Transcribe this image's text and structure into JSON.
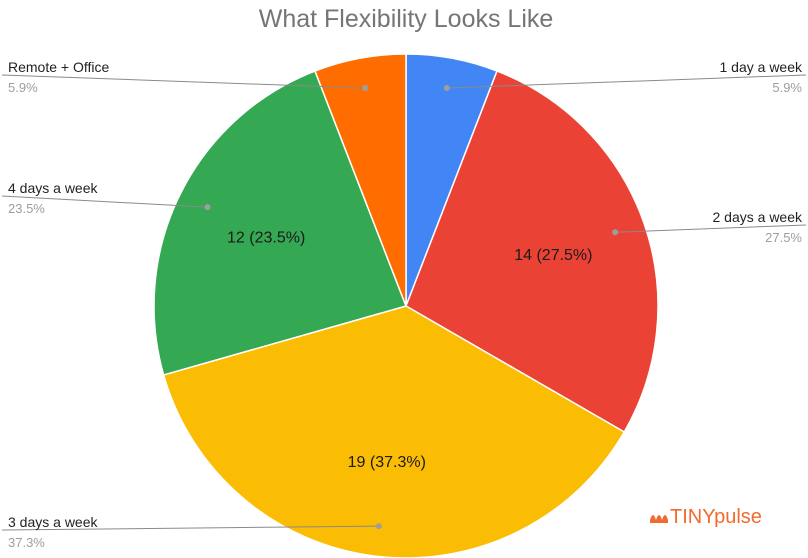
{
  "chart_data": {
    "type": "pie",
    "title": "What Flexibility Looks Like",
    "slices": [
      {
        "label": "1 day a week",
        "value": 3,
        "percent": 5.9,
        "percent_label": "5.9%",
        "color": "#4285f4",
        "inner_label": ""
      },
      {
        "label": "2 days a week",
        "value": 14,
        "percent": 27.5,
        "percent_label": "27.5%",
        "color": "#ea4335",
        "inner_label": "14 (27.5%)"
      },
      {
        "label": "3 days a week",
        "value": 19,
        "percent": 37.3,
        "percent_label": "37.3%",
        "color": "#fbbc04",
        "inner_label": "19 (37.3%)"
      },
      {
        "label": "4 days a week",
        "value": 12,
        "percent": 23.5,
        "percent_label": "23.5%",
        "color": "#34a853",
        "inner_label": "12 (23.5%)"
      },
      {
        "label": "Remote + Office",
        "value": 3,
        "percent": 5.9,
        "percent_label": "5.9%",
        "color": "#ff6d01",
        "inner_label": ""
      }
    ],
    "start": "top",
    "direction": "clockwise",
    "legend": "callouts"
  },
  "logo": {
    "text": "TINYpulse",
    "color": "#f26b2e"
  }
}
